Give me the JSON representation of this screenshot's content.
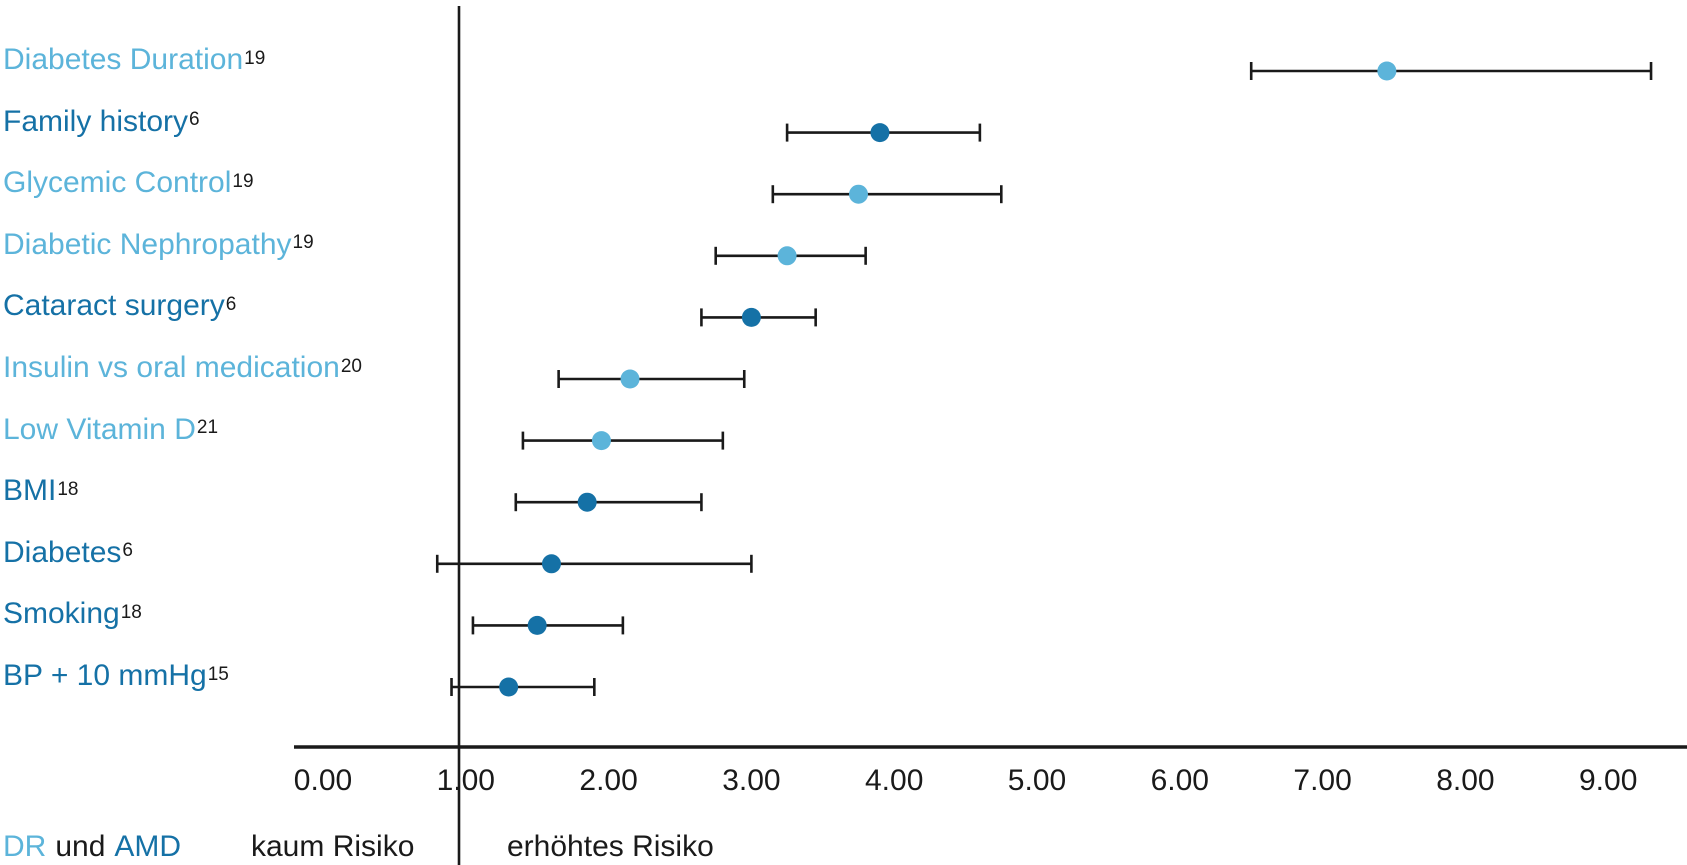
{
  "chart_data": {
    "type": "scatter",
    "variant": "forest-plot",
    "title": "",
    "xlabel": "",
    "ylabel": "",
    "x_range": [
      0,
      9.55
    ],
    "x_ticks": [
      "0.00",
      "1.00",
      "2.00",
      "3.00",
      "4.00",
      "5.00",
      "6.00",
      "7.00",
      "8.00",
      "9.00"
    ],
    "x_tick_values": [
      0,
      1,
      2,
      3,
      4,
      5,
      6,
      7,
      8,
      9
    ],
    "reference_line_x": 1.0,
    "grid": false,
    "legend_position": "bottom-left",
    "groups": {
      "DR": {
        "label": "DR",
        "color": "#5cb4da"
      },
      "AMD": {
        "label": "AMD",
        "color": "#1571a6"
      }
    },
    "rows": [
      {
        "label": "Diabetes Duration",
        "ref": "19",
        "group": "DR",
        "value": 7.45,
        "ci_low": 6.5,
        "ci_high": 9.3
      },
      {
        "label": "Family history",
        "ref": "6",
        "group": "AMD",
        "value": 3.9,
        "ci_low": 3.25,
        "ci_high": 4.6
      },
      {
        "label": "Glycemic Control",
        "ref": "19",
        "group": "DR",
        "value": 3.75,
        "ci_low": 3.15,
        "ci_high": 4.75
      },
      {
        "label": "Diabetic Nephropathy",
        "ref": "19",
        "group": "DR",
        "value": 3.25,
        "ci_low": 2.75,
        "ci_high": 3.8
      },
      {
        "label": "Cataract surgery",
        "ref": "6",
        "group": "AMD",
        "value": 3.0,
        "ci_low": 2.65,
        "ci_high": 3.45
      },
      {
        "label": "Insulin vs oral medication",
        "ref": "20",
        "group": "DR",
        "value": 2.15,
        "ci_low": 1.65,
        "ci_high": 2.95
      },
      {
        "label": "Low Vitamin D",
        "ref": "21",
        "group": "DR",
        "value": 1.95,
        "ci_low": 1.4,
        "ci_high": 2.8
      },
      {
        "label": "BMI",
        "ref": "18",
        "group": "AMD",
        "value": 1.85,
        "ci_low": 1.35,
        "ci_high": 2.65
      },
      {
        "label": "Diabetes",
        "ref": "6",
        "group": "AMD",
        "value": 1.6,
        "ci_low": 0.8,
        "ci_high": 3.0
      },
      {
        "label": "Smoking",
        "ref": "18",
        "group": "AMD",
        "value": 1.5,
        "ci_low": 1.05,
        "ci_high": 2.1
      },
      {
        "label": "BP + 10 mmHg",
        "ref": "15",
        "group": "AMD",
        "value": 1.3,
        "ci_low": 0.9,
        "ci_high": 1.9
      }
    ],
    "footer": {
      "legend": {
        "dr": "DR",
        "conj": "und",
        "amd": "AMD"
      },
      "left_zone_label": "kaum Risiko",
      "right_zone_label": "erhöhtes Risiko"
    },
    "colors": {
      "axis": "#1a1a1a",
      "error_bar": "#1a1a1a",
      "reference_line": "#1a1a1a",
      "superscript": "#1a1a1a"
    }
  }
}
